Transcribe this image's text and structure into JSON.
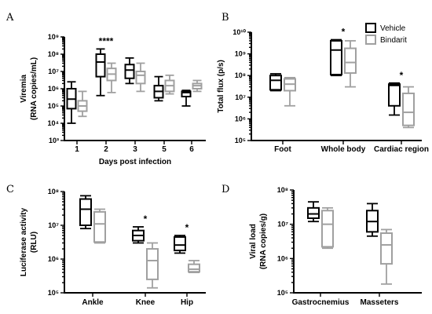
{
  "colors": {
    "vehicle": "#000000",
    "bindarit": "#a0a0a0"
  },
  "legend": {
    "vehicle": "Vehicle",
    "bindarit": "Bindarit"
  },
  "chart_data": [
    {
      "panel": "A",
      "type": "box",
      "scale": "log",
      "ylim_exp": [
        3,
        9
      ],
      "ytick_labels": [
        "10³",
        "10⁴",
        "10⁵",
        "10⁶",
        "10⁷",
        "10⁸",
        "10⁹"
      ],
      "ylabel": [
        "Viremia",
        "(RNA copies/mL)"
      ],
      "xlabel": "Days post infection",
      "categories": [
        "1",
        "2",
        "3",
        "5",
        "6"
      ],
      "significance": [
        {
          "category": "2",
          "label": "****"
        }
      ],
      "series": [
        {
          "name": "Vehicle",
          "boxes": [
            {
              "min": 10000,
              "q1": 70000,
              "median": 250000,
              "q3": 1000000,
              "max": 2500000
            },
            {
              "min": 400000,
              "q1": 5000000,
              "median": 35000000,
              "q3": 100000000,
              "max": 200000000
            },
            {
              "min": 2000000,
              "q1": 4000000,
              "median": 12000000,
              "q3": 25000000,
              "max": 60000000
            },
            {
              "min": 200000,
              "q1": 300000,
              "median": 700000,
              "q3": 1500000,
              "max": 5000000
            },
            {
              "min": 100000,
              "q1": 350000,
              "median": 600000,
              "q3": 700000,
              "max": 800000
            }
          ]
        },
        {
          "name": "Bindarit",
          "boxes": [
            {
              "min": 25000,
              "q1": 50000,
              "median": 100000,
              "q3": 200000,
              "max": 700000
            },
            {
              "min": 600000,
              "q1": 3000000,
              "median": 7000000,
              "q3": 15000000,
              "max": 30000000
            },
            {
              "min": 700000,
              "q1": 2000000,
              "median": 6000000,
              "q3": 10000000,
              "max": 30000000
            },
            {
              "min": 500000,
              "q1": 700000,
              "median": 1500000,
              "q3": 3000000,
              "max": 6000000
            },
            {
              "min": 700000,
              "q1": 1000000,
              "median": 1500000,
              "q3": 2000000,
              "max": 3000000
            }
          ]
        }
      ]
    },
    {
      "panel": "B",
      "type": "box",
      "scale": "log",
      "ylim_exp": [
        5,
        10
      ],
      "ytick_labels": [
        "10⁵",
        "10⁶",
        "10⁷",
        "10⁸",
        "10⁹",
        "10¹⁰"
      ],
      "ylabel": [
        "Total flux (p/s)"
      ],
      "xlabel": "",
      "categories": [
        "Foot",
        "Whole body",
        "Cardiac region"
      ],
      "significance": [
        {
          "category": "Whole body",
          "label": "*"
        },
        {
          "category": "Cardiac region",
          "label": "*"
        }
      ],
      "series": [
        {
          "name": "Vehicle",
          "boxes": [
            {
              "min": 20000000,
              "q1": 22000000,
              "median": 60000000,
              "q3": 100000000,
              "max": 120000000
            },
            {
              "min": 100000000,
              "q1": 110000000,
              "median": 1500000000,
              "q3": 4000000000,
              "max": 4500000000
            },
            {
              "min": 1500000,
              "q1": 4000000,
              "median": 35000000,
              "q3": 40000000,
              "max": 45000000
            }
          ]
        },
        {
          "name": "Bindarit",
          "boxes": [
            {
              "min": 4000000,
              "q1": 20000000,
              "median": 40000000,
              "q3": 70000000,
              "max": 80000000
            },
            {
              "min": 30000000,
              "q1": 130000000,
              "median": 400000000,
              "q3": 1800000000,
              "max": 4000000000
            },
            {
              "min": 400000,
              "q1": 500000,
              "median": 2000000,
              "q3": 15000000,
              "max": 30000000
            }
          ]
        }
      ]
    },
    {
      "panel": "C",
      "type": "box",
      "scale": "log",
      "ylim_exp": [
        5,
        8
      ],
      "ytick_labels": [
        "10⁵",
        "10⁶",
        "10⁷",
        "10⁸"
      ],
      "ylabel": [
        "Luciferase activity",
        "(RLU)"
      ],
      "xlabel": "",
      "categories": [
        "Ankle",
        "Knee",
        "Hip"
      ],
      "significance": [
        {
          "category": "Knee",
          "label": "*"
        },
        {
          "category": "Hip",
          "label": "*"
        }
      ],
      "series": [
        {
          "name": "Vehicle",
          "boxes": [
            {
              "min": 8000000,
              "q1": 10000000,
              "median": 30000000,
              "q3": 60000000,
              "max": 75000000
            },
            {
              "min": 3000000,
              "q1": 3500000,
              "median": 5000000,
              "q3": 7000000,
              "max": 9000000
            },
            {
              "min": 1500000,
              "q1": 1800000,
              "median": 2600000,
              "q3": 4500000,
              "max": 5000000
            }
          ]
        },
        {
          "name": "Bindarit",
          "boxes": [
            {
              "min": 3000000,
              "q1": 3200000,
              "median": 11000000,
              "q3": 25000000,
              "max": 30000000
            },
            {
              "min": 140000,
              "q1": 250000,
              "median": 900000,
              "q3": 2000000,
              "max": 3000000
            },
            {
              "min": 400000,
              "q1": 420000,
              "median": 500000,
              "q3": 700000,
              "max": 900000
            }
          ]
        }
      ]
    },
    {
      "panel": "D",
      "type": "box",
      "scale": "log",
      "ylim_exp": [
        5,
        8
      ],
      "ytick_labels": [
        "10⁵",
        "10⁶",
        "10⁷",
        "10⁸"
      ],
      "ylabel": [
        "Viral load",
        "(RNA copies/g)"
      ],
      "xlabel": "",
      "categories": [
        "Gastrocnemius",
        "Masseters"
      ],
      "significance": [],
      "series": [
        {
          "name": "Vehicle",
          "boxes": [
            {
              "min": 12000000,
              "q1": 15000000,
              "median": 20000000,
              "q3": 30000000,
              "max": 45000000
            },
            {
              "min": 4500000,
              "q1": 6000000,
              "median": 12000000,
              "q3": 25000000,
              "max": 40000000
            }
          ]
        },
        {
          "name": "Bindarit",
          "boxes": [
            {
              "min": 2000000,
              "q1": 2200000,
              "median": 10000000,
              "q3": 25000000,
              "max": 30000000
            },
            {
              "min": 180000,
              "q1": 700000,
              "median": 2500000,
              "q3": 5500000,
              "max": 7000000
            }
          ]
        }
      ]
    }
  ]
}
